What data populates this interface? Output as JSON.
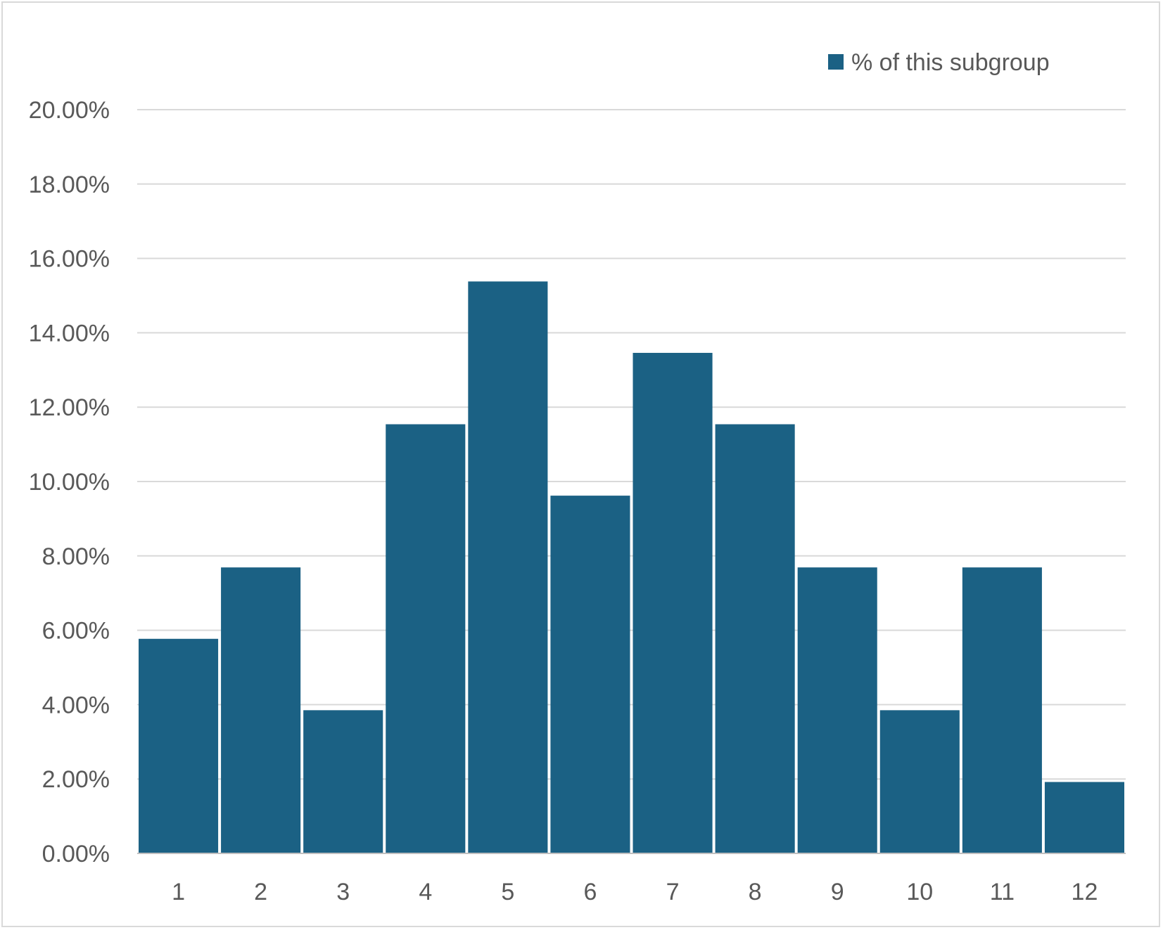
{
  "chart_data": {
    "type": "bar",
    "title": "",
    "xlabel": "",
    "ylabel": "",
    "categories": [
      "1",
      "2",
      "3",
      "4",
      "5",
      "6",
      "7",
      "8",
      "9",
      "10",
      "11",
      "12"
    ],
    "series": [
      {
        "name": "% of this subgroup",
        "color": "#1b6184",
        "values": [
          5.77,
          7.69,
          3.85,
          11.54,
          15.38,
          9.62,
          13.46,
          11.54,
          7.69,
          3.85,
          7.69,
          1.92
        ]
      }
    ],
    "ylim": [
      0,
      20
    ],
    "yticks": [
      "0.00%",
      "2.00%",
      "4.00%",
      "6.00%",
      "8.00%",
      "10.00%",
      "12.00%",
      "14.00%",
      "16.00%",
      "18.00%",
      "20.00%"
    ],
    "grid": true,
    "legend_position": "top-right",
    "colors": {
      "bar": "#1b6184",
      "grid": "#d9d9d9",
      "text": "#595959",
      "axis": "#bfbfbf"
    }
  }
}
